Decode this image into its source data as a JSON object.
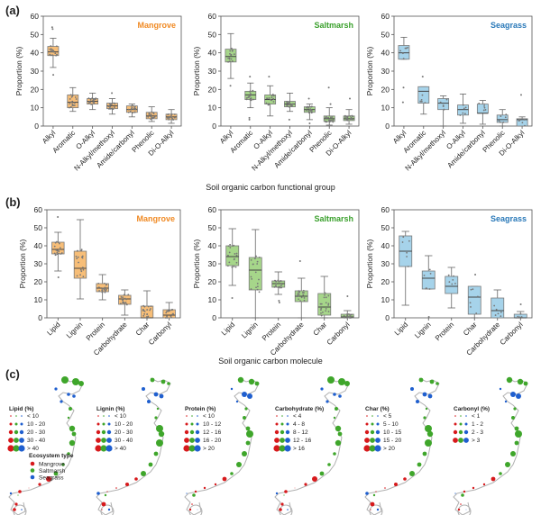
{
  "panel_labels": {
    "a": "(a)",
    "b": "(b)",
    "c": "(c)"
  },
  "group_titles": {
    "a": "Soil organic carbon functional group",
    "b": "Soil organic carbon molecule"
  },
  "colors": {
    "Mangrove": {
      "fill": "#f7be78",
      "stroke": "#7a7a7a",
      "title": "#f08a24"
    },
    "Saltmarsh": {
      "fill": "#a6d68a",
      "stroke": "#7a7a7a",
      "title": "#3aa02c"
    },
    "Seagrass": {
      "fill": "#a6d3ea",
      "stroke": "#7a7a7a",
      "title": "#2878b8"
    },
    "map_points": {
      "Mangrove": "#d7191c",
      "Saltmarsh": "#3fa62b",
      "Seagrass": "#1f5fcf"
    },
    "coastline": "#b0b0b0"
  },
  "chart_data": [
    {
      "type": "box",
      "panel": "a",
      "title": "Mangrove",
      "ylabel": "Proportion (%)",
      "xlabel": "",
      "ylim": [
        0,
        60
      ],
      "yticks": [
        0,
        10,
        20,
        30,
        40,
        50,
        60
      ],
      "categories": [
        "Alkyl",
        "Aromatic",
        "O-Alkyl",
        "N-Alkyl/methoxyl",
        "Amide/carbonyl",
        "Phenolic",
        "Di-O-Alkyl"
      ],
      "boxes": [
        {
          "min": 32,
          "q1": 38.5,
          "median": 40.5,
          "q3": 43.5,
          "max": 48,
          "outliers": [
            28,
            53,
            54
          ]
        },
        {
          "min": 8,
          "q1": 10,
          "median": 13,
          "q3": 17,
          "max": 21,
          "outliers": []
        },
        {
          "min": 9,
          "q1": 12,
          "median": 13.5,
          "q3": 15,
          "max": 18,
          "outliers": []
        },
        {
          "min": 6.5,
          "q1": 9.5,
          "median": 11,
          "q3": 12.5,
          "max": 15,
          "outliers": [
            18
          ]
        },
        {
          "min": 5,
          "q1": 7.5,
          "median": 9,
          "q3": 11,
          "max": 12,
          "outliers": []
        },
        {
          "min": 2.5,
          "q1": 4,
          "median": 5.5,
          "q3": 7.5,
          "max": 10.5,
          "outliers": []
        },
        {
          "min": 1.5,
          "q1": 3.5,
          "median": 5,
          "q3": 6.5,
          "max": 9,
          "outliers": []
        }
      ]
    },
    {
      "type": "box",
      "panel": "a",
      "title": "Saltmarsh",
      "ylabel": "Proportion (%)",
      "xlabel": "",
      "ylim": [
        0,
        60
      ],
      "yticks": [
        0,
        10,
        20,
        30,
        40,
        50,
        60
      ],
      "categories": [
        "Alkyl",
        "Aromatic",
        "O-Alkyl",
        "N-Alkyl/methoxyl",
        "Amide/carbonyl",
        "Phenolic",
        "Di-O-Alkyl"
      ],
      "boxes": [
        {
          "min": 26,
          "q1": 35,
          "median": 38,
          "q3": 42,
          "max": 50.5,
          "outliers": [
            22
          ]
        },
        {
          "min": 10,
          "q1": 14.5,
          "median": 17,
          "q3": 19,
          "max": 23.5,
          "outliers": [
            3.5,
            4.5,
            27
          ]
        },
        {
          "min": 5.5,
          "q1": 12,
          "median": 14.5,
          "q3": 17,
          "max": 22,
          "outliers": [
            27
          ]
        },
        {
          "min": 8,
          "q1": 10.5,
          "median": 12,
          "q3": 13.5,
          "max": 18,
          "outliers": [
            3.5
          ]
        },
        {
          "min": 3.5,
          "q1": 7.5,
          "median": 9,
          "q3": 10.5,
          "max": 12,
          "outliers": [
            1.5,
            15
          ]
        },
        {
          "min": 0.5,
          "q1": 2.5,
          "median": 4,
          "q3": 5.5,
          "max": 10,
          "outliers": [
            12,
            21
          ]
        },
        {
          "min": 1,
          "q1": 3,
          "median": 4,
          "q3": 5.5,
          "max": 9,
          "outliers": [
            15
          ]
        }
      ]
    },
    {
      "type": "box",
      "panel": "a",
      "title": "Seagrass",
      "ylabel": "Proportion (%)",
      "xlabel": "",
      "ylim": [
        0,
        60
      ],
      "yticks": [
        0,
        10,
        20,
        30,
        40,
        50,
        60
      ],
      "categories": [
        "Alkyl",
        "Aromatic",
        "N-Alkyl/methoxyl",
        "O-Alkyl",
        "Amide/carbonyl",
        "Phenolic",
        "Di-O-Alkyl"
      ],
      "boxes": [
        {
          "min": 36.5,
          "q1": 36.5,
          "median": 40,
          "q3": 44,
          "max": 48.5,
          "outliers": [
            13,
            21
          ]
        },
        {
          "min": 6.5,
          "q1": 12.5,
          "median": 19,
          "q3": 21.5,
          "max": 21.5,
          "outliers": [
            27
          ]
        },
        {
          "min": 0,
          "q1": 9,
          "median": 12.5,
          "q3": 15,
          "max": 16.5,
          "outliers": []
        },
        {
          "min": 1.5,
          "q1": 6,
          "median": 9,
          "q3": 11.5,
          "max": 17.5,
          "outliers": []
        },
        {
          "min": 1,
          "q1": 7,
          "median": 7,
          "q3": 12,
          "max": 14,
          "outliers": []
        },
        {
          "min": 0,
          "q1": 2,
          "median": 3.5,
          "q3": 6,
          "max": 9,
          "outliers": []
        },
        {
          "min": 0,
          "q1": 0,
          "median": 3.5,
          "q3": 4,
          "max": 5,
          "outliers": [
            17
          ]
        }
      ]
    },
    {
      "type": "box",
      "panel": "b",
      "title": "Mangrove",
      "ylabel": "Proportion (%)",
      "xlabel": "",
      "ylim": [
        0,
        60
      ],
      "yticks": [
        0,
        10,
        20,
        30,
        40,
        50,
        60
      ],
      "categories": [
        "Lipid",
        "Lignin",
        "Protein",
        "Carbohydrate",
        "Char",
        "Carbonyl"
      ],
      "boxes": [
        {
          "min": 26,
          "q1": 35.5,
          "median": 38,
          "q3": 42,
          "max": 47.5,
          "outliers": [
            22.5,
            56
          ]
        },
        {
          "min": 10.5,
          "q1": 22,
          "median": 27.5,
          "q3": 37,
          "max": 54.5,
          "outliers": []
        },
        {
          "min": 10,
          "q1": 14.5,
          "median": 16.5,
          "q3": 19,
          "max": 24,
          "outliers": []
        },
        {
          "min": 1.5,
          "q1": 7.5,
          "median": 10.5,
          "q3": 12.5,
          "max": 15.5,
          "outliers": []
        },
        {
          "min": 0,
          "q1": 0,
          "median": 0,
          "q3": 6.5,
          "max": 15,
          "outliers": []
        },
        {
          "min": 0,
          "q1": 0,
          "median": 1.5,
          "q3": 4.5,
          "max": 8.5,
          "outliers": []
        }
      ]
    },
    {
      "type": "box",
      "panel": "b",
      "title": "Saltmarsh",
      "ylabel": "Proportion (%)",
      "xlabel": "",
      "ylim": [
        0,
        60
      ],
      "yticks": [
        0,
        10,
        20,
        30,
        40,
        50,
        60
      ],
      "categories": [
        "Lipid",
        "Lignin",
        "Protein",
        "Carbohydrate",
        "Char",
        "Carbonyl"
      ],
      "boxes": [
        {
          "min": 18,
          "q1": 29,
          "median": 34,
          "q3": 40,
          "max": 49.5,
          "outliers": [
            11
          ]
        },
        {
          "min": 0,
          "q1": 15.5,
          "median": 26.5,
          "q3": 33.5,
          "max": 49,
          "outliers": []
        },
        {
          "min": 13,
          "q1": 17,
          "median": 19,
          "q3": 20.5,
          "max": 25.5,
          "outliers": [
            8.5,
            9.5
          ]
        },
        {
          "min": 0,
          "q1": 9,
          "median": 12,
          "q3": 15,
          "max": 22,
          "outliers": [
            31.5
          ]
        },
        {
          "min": 0,
          "q1": 1.5,
          "median": 6,
          "q3": 13.5,
          "max": 23,
          "outliers": []
        },
        {
          "min": 0,
          "q1": 0,
          "median": 0.5,
          "q3": 2,
          "max": 4,
          "outliers": [
            12
          ]
        }
      ]
    },
    {
      "type": "box",
      "panel": "b",
      "title": "Seagrass",
      "ylabel": "Proportion (%)",
      "xlabel": "",
      "ylim": [
        0,
        60
      ],
      "yticks": [
        0,
        10,
        20,
        30,
        40,
        50,
        60
      ],
      "categories": [
        "Lipid",
        "Lignin",
        "Protein",
        "Char",
        "Carbohydrate",
        "Carbonyl"
      ],
      "boxes": [
        {
          "min": 7,
          "q1": 28.5,
          "median": 37,
          "q3": 45.5,
          "max": 48,
          "outliers": []
        },
        {
          "min": 16,
          "q1": 16,
          "median": 22,
          "q3": 26,
          "max": 34.5,
          "outliers": [
            0.5
          ]
        },
        {
          "min": 5.5,
          "q1": 13.5,
          "median": 17.5,
          "q3": 23,
          "max": 28,
          "outliers": []
        },
        {
          "min": 0,
          "q1": 2,
          "median": 11.5,
          "q3": 17.5,
          "max": 17.5,
          "outliers": [
            24
          ]
        },
        {
          "min": 0,
          "q1": 0,
          "median": 4,
          "q3": 11,
          "max": 15.5,
          "outliers": []
        },
        {
          "min": 0,
          "q1": 0,
          "median": 0,
          "q3": 2,
          "max": 3.5,
          "outliers": [
            7.5
          ]
        }
      ]
    }
  ],
  "maps": [
    {
      "title": "Lipid (%)",
      "classes": [
        "< 10",
        "10 - 20",
        "20 - 30",
        "30 - 40",
        "> 40"
      ]
    },
    {
      "title": "Lignin (%)",
      "classes": [
        "< 10",
        "10 - 20",
        "20 - 30",
        "30 - 40",
        "> 40"
      ]
    },
    {
      "title": "Protein (%)",
      "classes": [
        "< 10",
        "10 - 12",
        "12 - 16",
        "16 - 20",
        "> 20"
      ]
    },
    {
      "title": "Carbohydrate (%)",
      "classes": [
        "< 4",
        "4 - 8",
        "8 - 12",
        "12 - 16",
        "> 16"
      ]
    },
    {
      "title": "Char (%)",
      "classes": [
        "< 5",
        "5 - 10",
        "10 - 15",
        "15 - 20",
        "> 20"
      ]
    },
    {
      "title": "Carbonyl (%)",
      "classes": [
        "< 1",
        "1 - 2",
        "2 - 3",
        "> 3"
      ]
    }
  ],
  "ecosystem_legend": {
    "title": "Ecosystem type",
    "items": [
      "Mangrove",
      "Saltmarsh",
      "Seagrass"
    ]
  }
}
